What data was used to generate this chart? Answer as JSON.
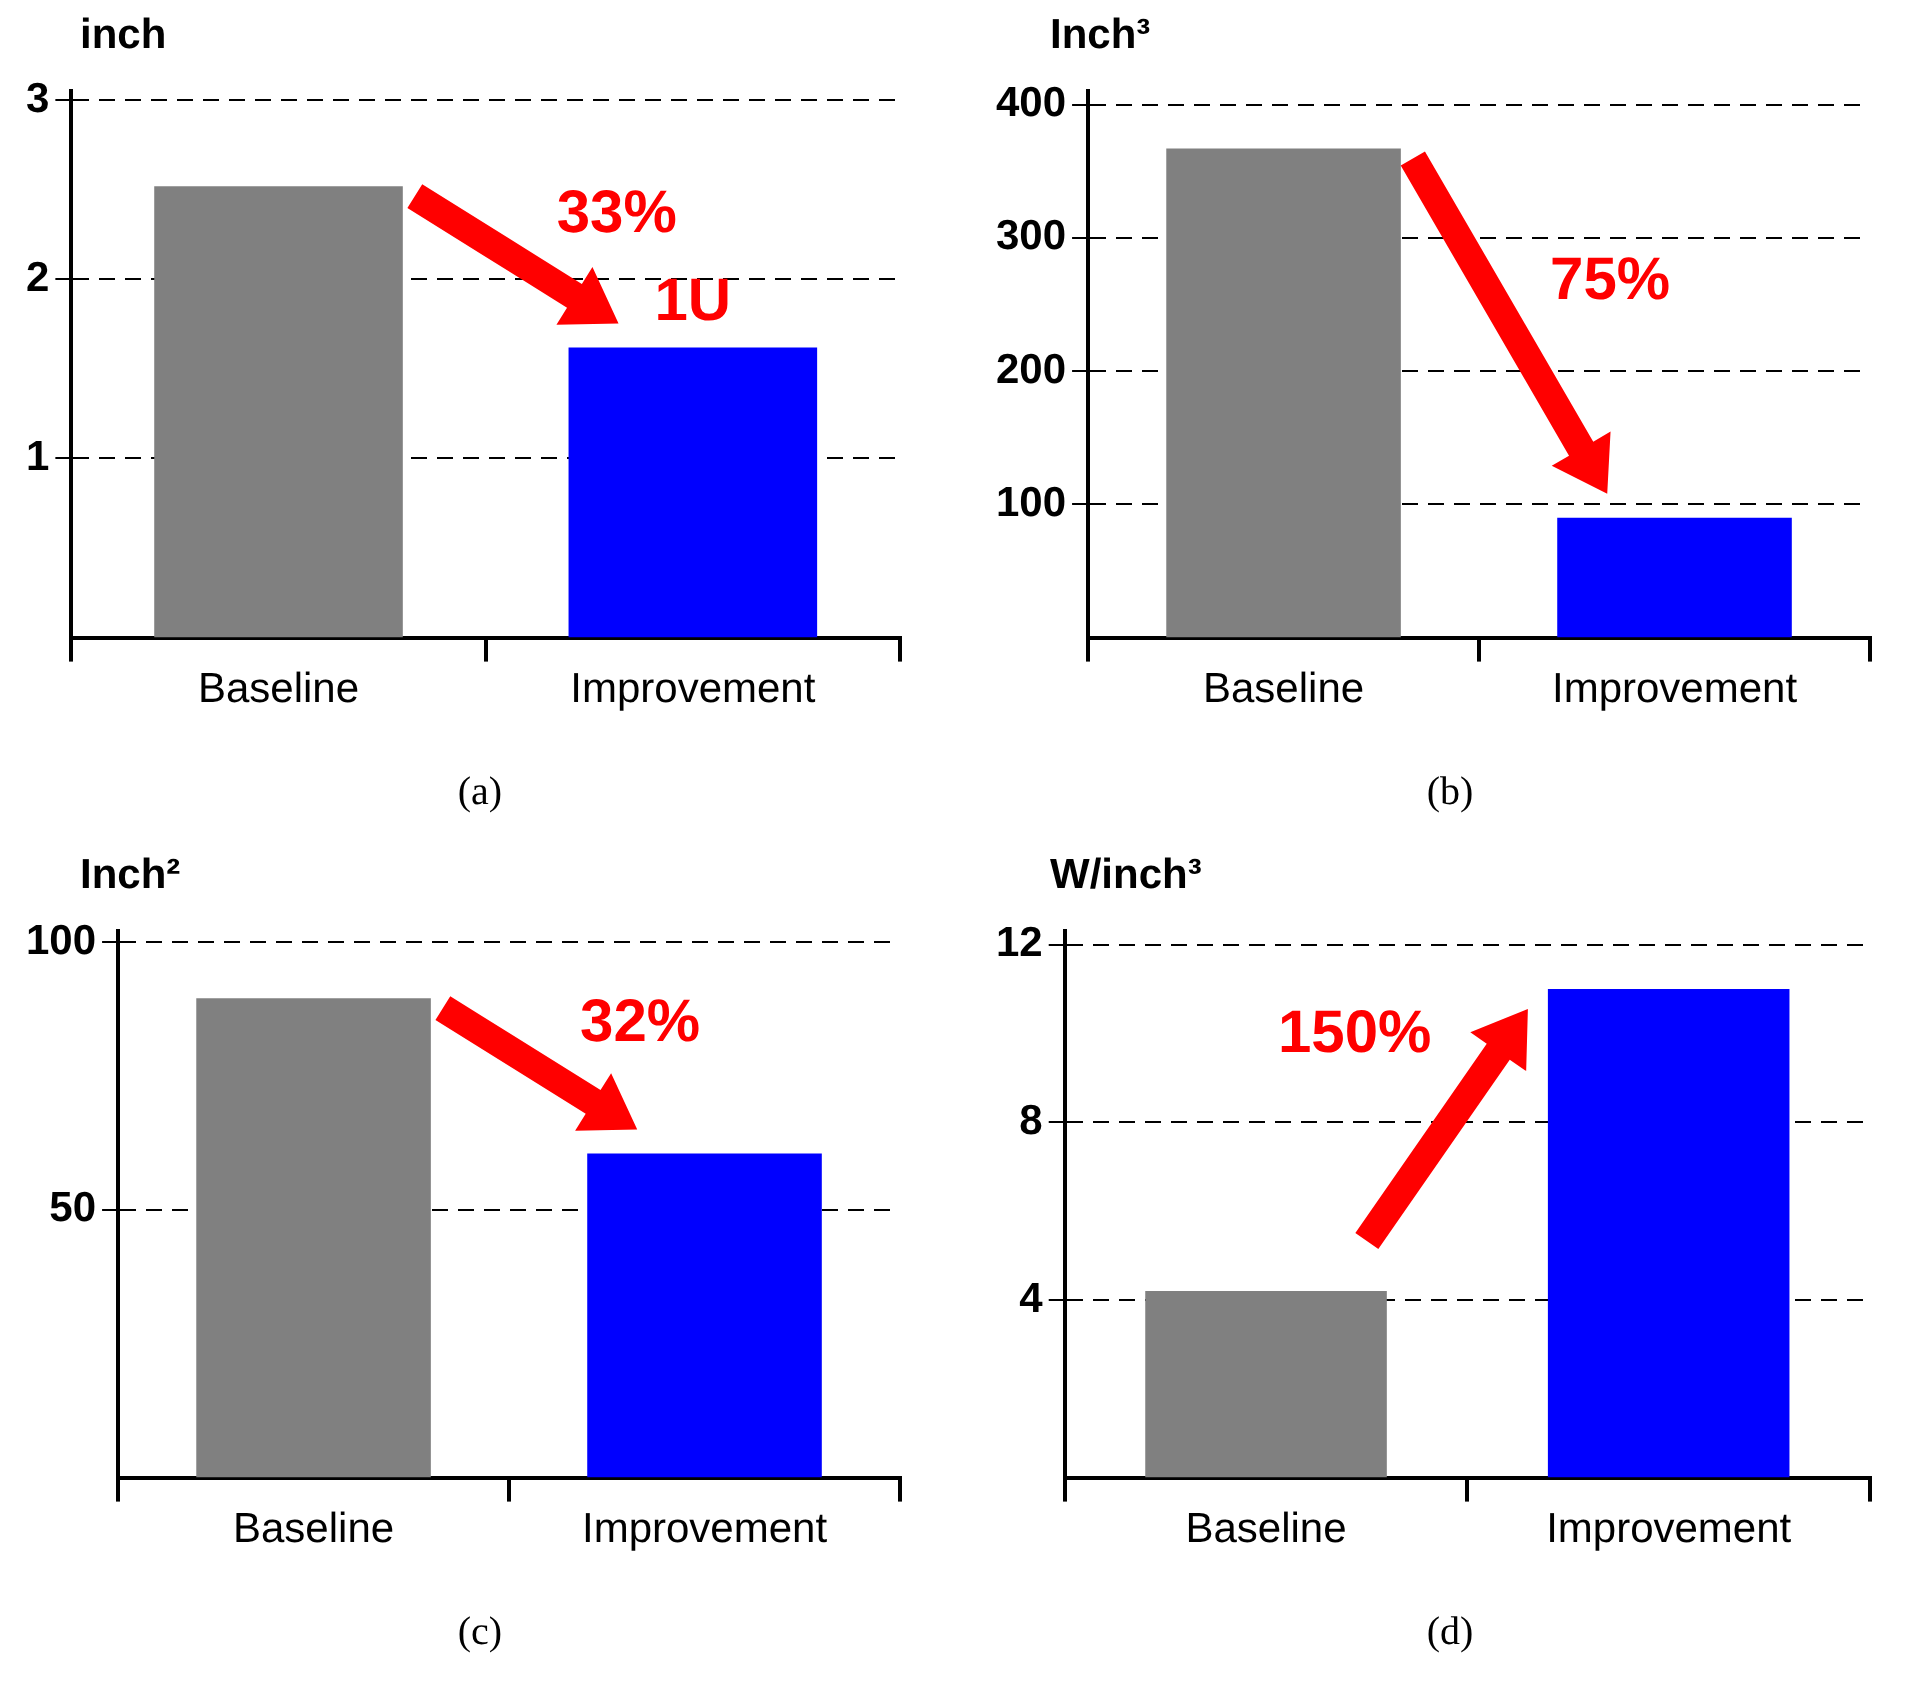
{
  "chart_data": [
    {
      "type": "bar",
      "title": "(a)",
      "ylabel": "inch",
      "categories": [
        "Baseline",
        "Improvement"
      ],
      "values": [
        2.52,
        1.62
      ],
      "colors": [
        "#808080",
        "#0000ff"
      ],
      "ylim": [
        0,
        3.05
      ],
      "yticks": [
        1,
        2,
        3
      ],
      "grid": "y",
      "legend": false,
      "annotations": [
        "33%",
        {
          "text": "1U",
          "x": "Improvement",
          "y": 1.62
        }
      ]
    },
    {
      "type": "bar",
      "title": "(b)",
      "ylabel": "Inch³",
      "categories": [
        "Baseline",
        "Improvement"
      ],
      "values": [
        367,
        90
      ],
      "colors": [
        "#808080",
        "#0000ff"
      ],
      "ylim": [
        0,
        410
      ],
      "yticks": [
        100,
        200,
        300,
        400
      ],
      "grid": "y",
      "legend": false,
      "annotations": [
        "75%"
      ]
    },
    {
      "type": "bar",
      "title": "(c)",
      "ylabel": "Inch²",
      "categories": [
        "Baseline",
        "Improvement"
      ],
      "values": [
        89.5,
        60.5
      ],
      "colors": [
        "#808080",
        "#0000ff"
      ],
      "ylim": [
        0,
        102
      ],
      "yticks": [
        50,
        100
      ],
      "grid": "y",
      "legend": false,
      "annotations": [
        "32%"
      ]
    },
    {
      "type": "bar",
      "title": "(d)",
      "ylabel": "W/inch³",
      "categories": [
        "Baseline",
        "Improvement"
      ],
      "values": [
        4.2,
        11.0
      ],
      "colors": [
        "#808080",
        "#0000ff"
      ],
      "ylim": [
        0,
        12.3
      ],
      "yticks": [
        4,
        8,
        12
      ],
      "grid": "y",
      "legend": false,
      "annotations": [
        "150%"
      ]
    }
  ]
}
